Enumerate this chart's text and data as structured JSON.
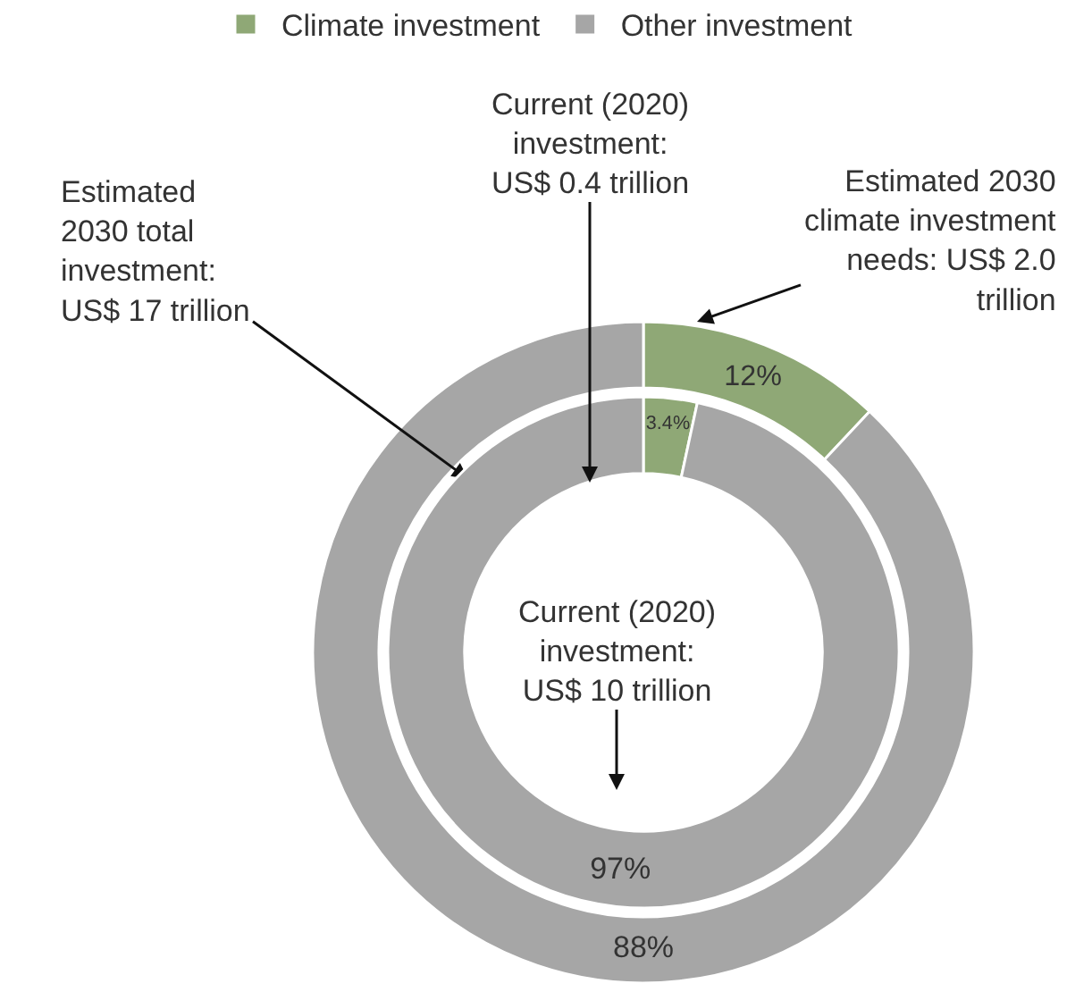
{
  "chart_data": [
    {
      "type": "donut",
      "categories": [
        "Climate investment",
        "Other investment"
      ],
      "values": [
        12,
        88
      ],
      "colors": [
        "#8fa876",
        "#a6a6a6"
      ],
      "value_labels": [
        "12%",
        "88%"
      ],
      "legend": "top",
      "annotations": [
        "Estimated\n2030 total\ninvestment:\nUS$ 17 trillion",
        "Estimated 2030\nclimate investment\nneeds: US$ 2.0\ntrillion"
      ]
    },
    {
      "type": "donut",
      "categories": [
        null,
        null
      ],
      "values": [
        3.4,
        97
      ],
      "colors": [
        "#8fa876",
        "#a6a6a6"
      ],
      "value_labels": [
        "3.4%",
        "97%"
      ],
      "annotations": [
        "Current (2020)\ninvestment:\nUS$ 0.4 trillion",
        "Current (2020)\ninvestment:\nUS$ 10 trillion"
      ]
    }
  ]
}
